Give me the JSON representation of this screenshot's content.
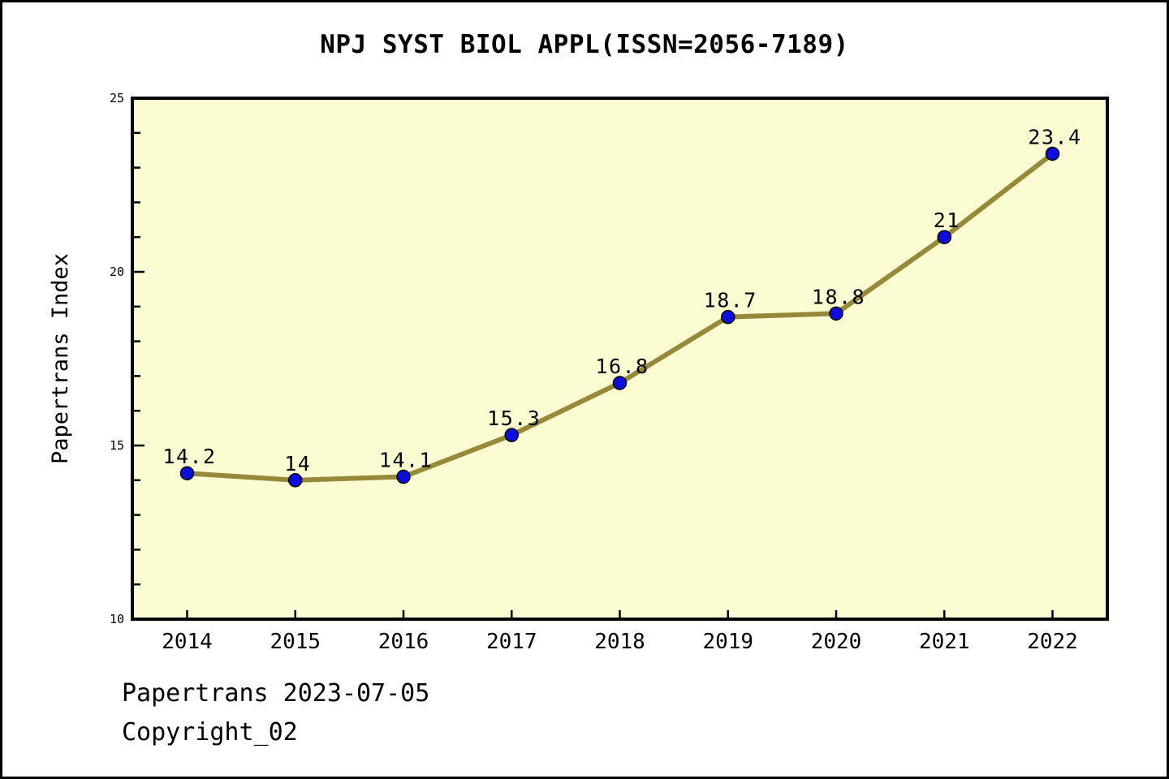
{
  "figure": {
    "footer_line1": "Papertrans 2023-07-05",
    "footer_line2": "Copyright_02"
  },
  "chart_data": {
    "type": "line",
    "title": "NPJ SYST BIOL APPL(ISSN=2056-7189)",
    "xlabel": "",
    "ylabel": "Papertrans Index",
    "categories": [
      "2014",
      "2015",
      "2016",
      "2017",
      "2018",
      "2019",
      "2020",
      "2021",
      "2022"
    ],
    "values": [
      14.2,
      14,
      14.1,
      15.3,
      16.8,
      18.7,
      18.8,
      21,
      23.4
    ],
    "point_labels": [
      "14.2",
      "14",
      "14.1",
      "15.3",
      "16.8",
      "18.7",
      "18.8",
      "21",
      "23.4"
    ],
    "ylim": [
      10,
      25
    ],
    "yticks_major": [
      10,
      15,
      20,
      25
    ],
    "ytick_minor_step": 1,
    "grid": false,
    "legend_position": "none",
    "line_width": 6,
    "marker": "circle",
    "marker_radius": 8,
    "colors": {
      "plot_background": "#FCFCD2",
      "line": "#97883A",
      "marker_fill": "#0D0DDE",
      "marker_edge": "#000000",
      "axis": "#000000",
      "text": "#000000"
    }
  }
}
